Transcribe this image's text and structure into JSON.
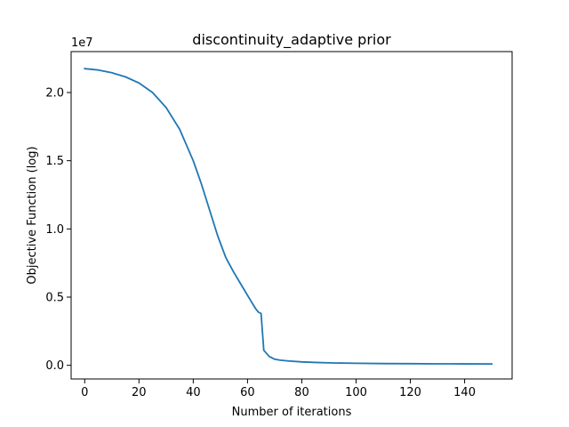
{
  "chart_data": {
    "type": "line",
    "title": "discontinuity_adaptive prior",
    "xlabel": "Number of iterations",
    "ylabel": "Objective Function (log)",
    "y_offset_label": "1e7",
    "xlim": [
      -5,
      157.5
    ],
    "ylim": [
      -0.1,
      2.3
    ],
    "y_scale_note": "values in units of 1e7",
    "x_ticks": [
      0,
      20,
      40,
      60,
      80,
      100,
      120,
      140
    ],
    "x_tick_labels": [
      "0",
      "20",
      "40",
      "60",
      "80",
      "100",
      "120",
      "140"
    ],
    "y_ticks": [
      0.0,
      0.5,
      1.0,
      1.5,
      2.0
    ],
    "y_tick_labels": [
      "0.0",
      "0.5",
      "1.0",
      "1.5",
      "2.0"
    ],
    "grid": false,
    "legend": "none",
    "series": [
      {
        "color": "#1f77b4",
        "x": [
          0,
          5,
          10,
          15,
          20,
          25,
          30,
          35,
          40,
          43,
          46,
          49,
          52,
          55,
          58,
          61,
          63,
          64,
          65,
          66,
          68,
          70,
          72,
          75,
          80,
          85,
          90,
          100,
          110,
          120,
          130,
          140,
          150
        ],
        "y": [
          2.175,
          2.165,
          2.145,
          2.115,
          2.07,
          2.0,
          1.89,
          1.73,
          1.5,
          1.33,
          1.14,
          0.95,
          0.79,
          0.68,
          0.58,
          0.48,
          0.415,
          0.39,
          0.38,
          0.11,
          0.065,
          0.045,
          0.038,
          0.032,
          0.025,
          0.021,
          0.018,
          0.015,
          0.013,
          0.012,
          0.011,
          0.0105,
          0.01
        ]
      }
    ]
  }
}
